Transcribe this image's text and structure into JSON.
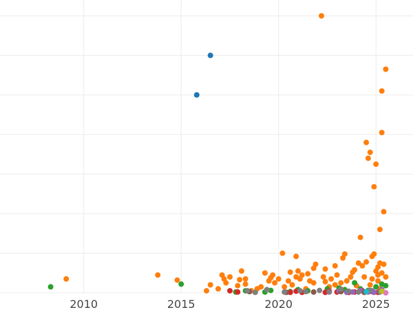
{
  "chart_data": {
    "type": "scatter",
    "title": "",
    "xlabel": "",
    "ylabel": "",
    "xlim": [
      2005.7,
      2026.9
    ],
    "ylim": [
      0,
      7.4
    ],
    "grid": true,
    "legend": "none",
    "x_ticks": [
      {
        "value": 2010,
        "label": "2010"
      },
      {
        "value": 2015,
        "label": "2015"
      },
      {
        "value": 2020,
        "label": "2020"
      },
      {
        "value": 2025,
        "label": "2025"
      }
    ],
    "y_gridlines": [
      0,
      1,
      2,
      3,
      4,
      5,
      6,
      7
    ],
    "series": [
      {
        "color": "#1f77b4",
        "points": [
          [
            2015.8,
            5.0
          ],
          [
            2016.5,
            6.0
          ]
        ]
      },
      {
        "color": "#ff7f0e",
        "points": [
          [
            2009.1,
            0.35
          ],
          [
            2013.8,
            0.45
          ],
          [
            2014.8,
            0.32
          ],
          [
            2016.3,
            0.05
          ],
          [
            2016.5,
            0.2
          ],
          [
            2016.9,
            0.1
          ],
          [
            2017.1,
            0.45
          ],
          [
            2017.2,
            0.35
          ],
          [
            2017.3,
            0.25
          ],
          [
            2017.5,
            0.4
          ],
          [
            2017.9,
            0.18
          ],
          [
            2018.0,
            0.33
          ],
          [
            2018.1,
            0.55
          ],
          [
            2018.3,
            0.35
          ],
          [
            2018.3,
            0.22
          ],
          [
            2018.6,
            0.05
          ],
          [
            2018.9,
            0.1
          ],
          [
            2019.1,
            0.15
          ],
          [
            2019.3,
            0.5
          ],
          [
            2019.5,
            0.3
          ],
          [
            2019.6,
            0.38
          ],
          [
            2019.7,
            0.45
          ],
          [
            2019.8,
            0.25
          ],
          [
            2020.0,
            0.35
          ],
          [
            2020.2,
            1.0
          ],
          [
            2020.3,
            0.15
          ],
          [
            2020.5,
            0.3
          ],
          [
            2020.6,
            0.52
          ],
          [
            2020.7,
            0.2
          ],
          [
            2020.9,
            0.4
          ],
          [
            2020.9,
            0.92
          ],
          [
            2021.0,
            0.55
          ],
          [
            2021.1,
            0.35
          ],
          [
            2021.2,
            0.45
          ],
          [
            2021.4,
            0.1
          ],
          [
            2021.5,
            0.48
          ],
          [
            2021.6,
            0.3
          ],
          [
            2021.8,
            0.25
          ],
          [
            2021.8,
            0.62
          ],
          [
            2021.9,
            0.72
          ],
          [
            2022.2,
            7.0
          ],
          [
            2022.3,
            0.4
          ],
          [
            2022.4,
            0.28
          ],
          [
            2022.4,
            0.6
          ],
          [
            2022.6,
            0.15
          ],
          [
            2022.7,
            0.35
          ],
          [
            2022.9,
            0.68
          ],
          [
            2022.9,
            0.2
          ],
          [
            2023.0,
            0.45
          ],
          [
            2023.2,
            0.25
          ],
          [
            2023.3,
            0.88
          ],
          [
            2023.4,
            0.98
          ],
          [
            2023.5,
            0.3
          ],
          [
            2023.7,
            0.4
          ],
          [
            2023.8,
            0.52
          ],
          [
            2023.9,
            0.58
          ],
          [
            2024.0,
            0.18
          ],
          [
            2024.1,
            0.75
          ],
          [
            2024.2,
            1.4
          ],
          [
            2024.3,
            0.68
          ],
          [
            2024.4,
            0.4
          ],
          [
            2024.5,
            0.78
          ],
          [
            2024.5,
            3.8
          ],
          [
            2024.6,
            3.4
          ],
          [
            2024.7,
            3.55
          ],
          [
            2024.7,
            0.2
          ],
          [
            2024.8,
            0.92
          ],
          [
            2024.8,
            0.35
          ],
          [
            2024.9,
            2.68
          ],
          [
            2024.9,
            0.98
          ],
          [
            2025.0,
            3.25
          ],
          [
            2025.0,
            0.55
          ],
          [
            2025.1,
            0.65
          ],
          [
            2025.1,
            0.45
          ],
          [
            2025.1,
            0.3
          ],
          [
            2025.2,
            1.6
          ],
          [
            2025.2,
            0.75
          ],
          [
            2025.2,
            0.1
          ],
          [
            2025.3,
            4.05
          ],
          [
            2025.3,
            5.1
          ],
          [
            2025.3,
            0.5
          ],
          [
            2025.4,
            2.05
          ],
          [
            2025.4,
            0.72
          ],
          [
            2025.5,
            5.65
          ],
          [
            2025.5,
            0.4
          ]
        ]
      },
      {
        "color": "#2ca02c",
        "points": [
          [
            2008.3,
            0.15
          ],
          [
            2015.0,
            0.22
          ],
          [
            2017.8,
            0.02
          ],
          [
            2018.3,
            0.05
          ],
          [
            2019.3,
            0.02
          ],
          [
            2019.6,
            0.06
          ],
          [
            2020.6,
            0.03
          ],
          [
            2021.0,
            0.08
          ],
          [
            2021.5,
            0.05
          ],
          [
            2022.5,
            0.1
          ],
          [
            2023.1,
            0.12
          ],
          [
            2023.4,
            0.08
          ],
          [
            2023.9,
            0.25
          ],
          [
            2024.2,
            0.1
          ],
          [
            2024.6,
            0.06
          ],
          [
            2025.0,
            0.15
          ],
          [
            2025.3,
            0.22
          ],
          [
            2025.5,
            0.18
          ]
        ]
      },
      {
        "color": "#d62728",
        "points": [
          [
            2017.5,
            0.05
          ],
          [
            2017.9,
            0.02
          ],
          [
            2020.6,
            0.01
          ],
          [
            2020.9,
            0.04
          ],
          [
            2021.2,
            0.01
          ],
          [
            2022.4,
            0.01
          ],
          [
            2022.6,
            0.05
          ],
          [
            2023.0,
            0.02
          ],
          [
            2023.6,
            0.01
          ],
          [
            2023.9,
            0.02
          ],
          [
            2024.3,
            0.05
          ],
          [
            2024.8,
            0.03
          ],
          [
            2025.1,
            0.01
          ]
        ]
      },
      {
        "color": "#9467bd",
        "points": [
          [
            2022.6,
            0.02
          ],
          [
            2023.1,
            0.04
          ],
          [
            2023.5,
            0.01
          ],
          [
            2023.8,
            0.02
          ],
          [
            2024.2,
            0.06
          ],
          [
            2024.6,
            0.02
          ],
          [
            2024.8,
            0.05
          ],
          [
            2024.9,
            0.01
          ],
          [
            2025.3,
            0.08
          ]
        ]
      },
      {
        "color": "#8c564b",
        "points": [
          [
            2018.5,
            0.03
          ],
          [
            2020.4,
            0.01
          ],
          [
            2021.8,
            0.02
          ],
          [
            2023.2,
            0.03
          ],
          [
            2024.4,
            0.01
          ],
          [
            2025.2,
            0.03
          ]
        ]
      },
      {
        "color": "#e377c2",
        "points": [
          [
            2025.5,
            0.0
          ]
        ]
      },
      {
        "color": "#7f7f7f",
        "points": [
          [
            2018.4,
            0.05
          ],
          [
            2018.8,
            0.01
          ],
          [
            2019.4,
            0.08
          ],
          [
            2020.3,
            0.02
          ],
          [
            2021.1,
            0.05
          ],
          [
            2021.4,
            0.03
          ],
          [
            2022.1,
            0.06
          ],
          [
            2022.6,
            0.03
          ],
          [
            2023.2,
            0.09
          ],
          [
            2023.6,
            0.04
          ],
          [
            2024.1,
            0.02
          ],
          [
            2024.7,
            0.06
          ],
          [
            2025.2,
            0.02
          ]
        ]
      },
      {
        "color": "#bcbd22",
        "points": [
          [
            2025.3,
            0.04
          ]
        ]
      },
      {
        "color": "#17becf",
        "points": [
          [
            2024.5,
            0.03
          ]
        ]
      }
    ]
  }
}
